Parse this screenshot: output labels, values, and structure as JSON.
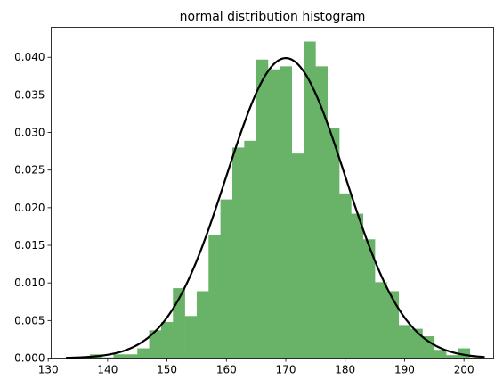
{
  "chart_data": {
    "type": "bar",
    "title": "normal distribution histogram",
    "xlabel": "",
    "ylabel": "",
    "xlim": [
      130.5,
      205
    ],
    "ylim": [
      0,
      0.044
    ],
    "xticks": [
      130,
      140,
      150,
      160,
      170,
      180,
      190,
      200
    ],
    "xtick_labels": [
      "130",
      "140",
      "150",
      "160",
      "170",
      "180",
      "190",
      "200"
    ],
    "yticks": [
      0,
      0.005,
      0.01,
      0.015,
      0.02,
      0.025,
      0.03,
      0.035,
      0.04
    ],
    "ytick_labels": [
      "0.000",
      "0.005",
      "0.010",
      "0.015",
      "0.020",
      "0.025",
      "0.030",
      "0.035",
      "0.040"
    ],
    "grid": false,
    "histogram": {
      "color": "#68b368",
      "bin_edges": [
        133,
        135,
        137,
        139,
        141,
        143,
        145,
        147,
        149,
        151,
        153,
        155,
        157,
        159,
        161,
        163,
        165,
        167,
        169,
        171,
        173,
        175,
        177,
        179,
        181,
        183,
        185,
        187,
        189,
        191,
        193,
        195,
        197,
        199,
        201,
        203
      ],
      "density": [
        0.0001,
        0.0001,
        0.0005,
        0.0001,
        0.0005,
        0.0005,
        0.0013,
        0.0037,
        0.0048,
        0.0093,
        0.0056,
        0.0089,
        0.0164,
        0.0211,
        0.028,
        0.0289,
        0.0397,
        0.0384,
        0.0388,
        0.0272,
        0.0421,
        0.0388,
        0.0306,
        0.0219,
        0.0192,
        0.0158,
        0.0101,
        0.0089,
        0.0044,
        0.0039,
        0.0029,
        0.0011,
        0.0004,
        0.0013,
        0.0001
      ]
    },
    "curve": {
      "type": "line",
      "color": "#000000",
      "mean": 170,
      "std": 10,
      "x_range": [
        133,
        203.5
      ]
    }
  }
}
